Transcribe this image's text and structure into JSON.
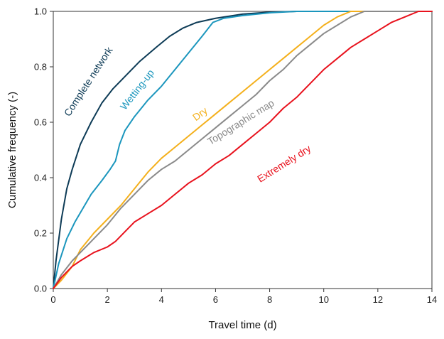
{
  "chart_data": {
    "type": "line",
    "title": "",
    "xlabel": "Travel time (d)",
    "ylabel": "Cumulative frequency (-)",
    "xlim": [
      0,
      14
    ],
    "ylim": [
      0,
      1
    ],
    "xticks": [
      "0",
      "2",
      "4",
      "6",
      "8",
      "10",
      "12",
      "14"
    ],
    "yticks": [
      "0.0",
      "0.2",
      "0.4",
      "0.6",
      "0.8",
      "1.0"
    ],
    "grid": false,
    "legend": "inline labels",
    "series": [
      {
        "name": "Complete network",
        "color": "#0d3b56",
        "points": [
          [
            0,
            0
          ],
          [
            0.1,
            0.1
          ],
          [
            0.3,
            0.25
          ],
          [
            0.5,
            0.36
          ],
          [
            0.7,
            0.43
          ],
          [
            1.0,
            0.52
          ],
          [
            1.4,
            0.6
          ],
          [
            1.8,
            0.67
          ],
          [
            2.2,
            0.72
          ],
          [
            2.7,
            0.77
          ],
          [
            3.2,
            0.82
          ],
          [
            3.8,
            0.87
          ],
          [
            4.3,
            0.91
          ],
          [
            4.8,
            0.94
          ],
          [
            5.3,
            0.96
          ],
          [
            6,
            0.975
          ],
          [
            7,
            0.99
          ],
          [
            8,
            0.997
          ],
          [
            9,
            1.0
          ],
          [
            14,
            1.0
          ]
        ]
      },
      {
        "name": "Wetting-up",
        "color": "#1b96bd",
        "points": [
          [
            0,
            0
          ],
          [
            0.2,
            0.09
          ],
          [
            0.5,
            0.18
          ],
          [
            0.8,
            0.24
          ],
          [
            1.1,
            0.29
          ],
          [
            1.4,
            0.34
          ],
          [
            1.8,
            0.39
          ],
          [
            2.1,
            0.43
          ],
          [
            2.3,
            0.46
          ],
          [
            2.45,
            0.52
          ],
          [
            2.65,
            0.57
          ],
          [
            3.0,
            0.62
          ],
          [
            3.5,
            0.68
          ],
          [
            4.0,
            0.73
          ],
          [
            4.5,
            0.79
          ],
          [
            5.0,
            0.85
          ],
          [
            5.5,
            0.91
          ],
          [
            5.9,
            0.96
          ],
          [
            6.3,
            0.975
          ],
          [
            7,
            0.985
          ],
          [
            8,
            0.995
          ],
          [
            9,
            1.0
          ],
          [
            14,
            1.0
          ]
        ]
      },
      {
        "name": "Dry",
        "color": "#f4b01c",
        "points": [
          [
            0,
            0
          ],
          [
            0.3,
            0.03
          ],
          [
            0.7,
            0.08
          ],
          [
            1.0,
            0.14
          ],
          [
            1.5,
            0.2
          ],
          [
            2.0,
            0.25
          ],
          [
            2.5,
            0.3
          ],
          [
            3.0,
            0.36
          ],
          [
            3.5,
            0.42
          ],
          [
            4.0,
            0.47
          ],
          [
            4.5,
            0.51
          ],
          [
            5.0,
            0.55
          ],
          [
            5.5,
            0.59
          ],
          [
            6.0,
            0.63
          ],
          [
            6.5,
            0.67
          ],
          [
            7.0,
            0.71
          ],
          [
            7.5,
            0.75
          ],
          [
            8.0,
            0.79
          ],
          [
            8.5,
            0.83
          ],
          [
            9.0,
            0.87
          ],
          [
            9.5,
            0.91
          ],
          [
            10.0,
            0.95
          ],
          [
            10.5,
            0.98
          ],
          [
            11,
            1.0
          ],
          [
            14,
            1.0
          ]
        ]
      },
      {
        "name": "Topographic map",
        "color": "#8a8a8a",
        "points": [
          [
            0,
            0
          ],
          [
            0.3,
            0.05
          ],
          [
            0.7,
            0.1
          ],
          [
            1.0,
            0.13
          ],
          [
            1.5,
            0.18
          ],
          [
            2.0,
            0.23
          ],
          [
            2.5,
            0.29
          ],
          [
            3.0,
            0.34
          ],
          [
            3.5,
            0.39
          ],
          [
            4.0,
            0.43
          ],
          [
            4.5,
            0.46
          ],
          [
            5.0,
            0.5
          ],
          [
            5.5,
            0.54
          ],
          [
            6.0,
            0.58
          ],
          [
            6.5,
            0.62
          ],
          [
            7.0,
            0.66
          ],
          [
            7.5,
            0.7
          ],
          [
            8.0,
            0.75
          ],
          [
            8.5,
            0.79
          ],
          [
            9.0,
            0.84
          ],
          [
            9.5,
            0.88
          ],
          [
            10.0,
            0.92
          ],
          [
            10.5,
            0.95
          ],
          [
            11.0,
            0.98
          ],
          [
            11.5,
            1.0
          ],
          [
            14,
            1.0
          ]
        ]
      },
      {
        "name": "Extremely dry",
        "color": "#e8121d",
        "points": [
          [
            0,
            0
          ],
          [
            0.3,
            0.04
          ],
          [
            0.7,
            0.08
          ],
          [
            1.0,
            0.1
          ],
          [
            1.5,
            0.13
          ],
          [
            2.0,
            0.15
          ],
          [
            2.3,
            0.17
          ],
          [
            2.7,
            0.21
          ],
          [
            3.0,
            0.24
          ],
          [
            3.5,
            0.27
          ],
          [
            4.0,
            0.3
          ],
          [
            4.5,
            0.34
          ],
          [
            5.0,
            0.38
          ],
          [
            5.5,
            0.41
          ],
          [
            6.0,
            0.45
          ],
          [
            6.5,
            0.48
          ],
          [
            7.0,
            0.52
          ],
          [
            7.5,
            0.56
          ],
          [
            8.0,
            0.6
          ],
          [
            8.5,
            0.65
          ],
          [
            9.0,
            0.69
          ],
          [
            9.5,
            0.74
          ],
          [
            10.0,
            0.79
          ],
          [
            10.5,
            0.83
          ],
          [
            11.0,
            0.87
          ],
          [
            11.5,
            0.9
          ],
          [
            12.0,
            0.93
          ],
          [
            12.5,
            0.96
          ],
          [
            13.0,
            0.98
          ],
          [
            13.5,
            1.0
          ],
          [
            14,
            1.0
          ]
        ]
      }
    ],
    "annotations": [
      {
        "text": "Complete network",
        "series": 0,
        "x": 1.4,
        "y": 0.74,
        "angle": -57
      },
      {
        "text": "Wetting-up",
        "series": 1,
        "x": 3.2,
        "y": 0.71,
        "angle": -52
      },
      {
        "text": "Dry",
        "series": 2,
        "x": 5.5,
        "y": 0.62,
        "angle": -36
      },
      {
        "text": "Topographic map",
        "series": 3,
        "x": 7.0,
        "y": 0.59,
        "angle": -32
      },
      {
        "text": "Extremely dry",
        "series": 4,
        "x": 8.6,
        "y": 0.44,
        "angle": -32
      }
    ]
  }
}
